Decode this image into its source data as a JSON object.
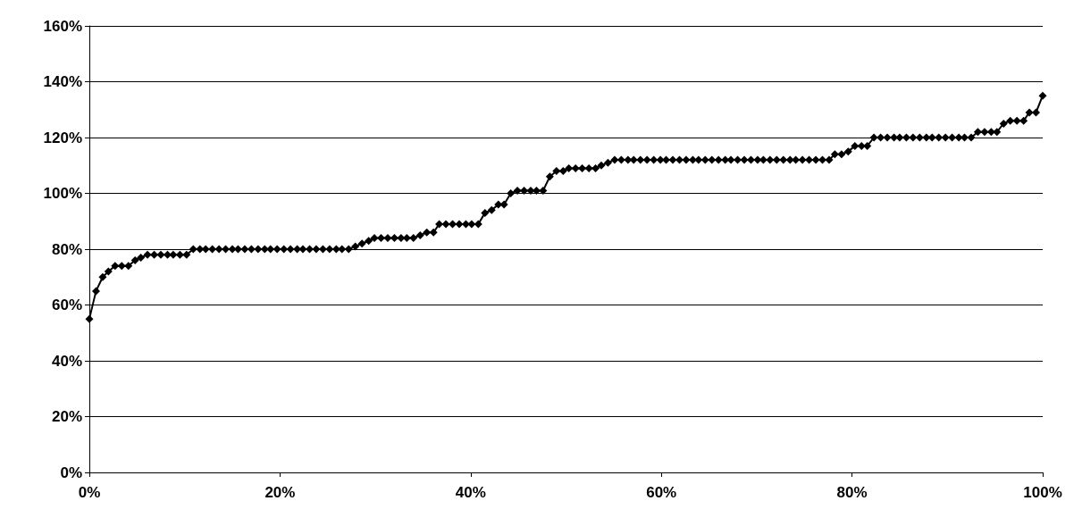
{
  "chart_data": {
    "type": "line",
    "marker": "diamond",
    "line_style": "solid",
    "grid": "y",
    "xlim": [
      0,
      100
    ],
    "xticks": [
      {
        "value": 0,
        "label": "0%"
      },
      {
        "value": 20,
        "label": "20%"
      },
      {
        "value": 40,
        "label": "40%"
      },
      {
        "value": 60,
        "label": "60%"
      },
      {
        "value": 80,
        "label": "80%"
      },
      {
        "value": 100,
        "label": "100%"
      }
    ],
    "ylim": [
      0,
      160
    ],
    "yticks": [
      {
        "value": 0,
        "label": "0%"
      },
      {
        "value": 20,
        "label": "20%"
      },
      {
        "value": 40,
        "label": "40%"
      },
      {
        "value": 60,
        "label": "60%"
      },
      {
        "value": 80,
        "label": "80%"
      },
      {
        "value": 100,
        "label": "100%"
      },
      {
        "value": 120,
        "label": "120%"
      },
      {
        "value": 140,
        "label": "140%"
      },
      {
        "value": 160,
        "label": "160%"
      }
    ],
    "x": [
      0,
      0.7,
      1.4,
      2.0,
      2.7,
      3.4,
      4.1,
      4.8,
      5.4,
      6.1,
      6.8,
      7.5,
      8.2,
      8.8,
      9.5,
      10.2,
      10.9,
      11.6,
      12.2,
      12.9,
      13.6,
      14.3,
      15.0,
      15.6,
      16.3,
      17.0,
      17.7,
      18.4,
      19.0,
      19.7,
      20.4,
      21.1,
      21.8,
      22.4,
      23.1,
      23.8,
      24.5,
      25.2,
      25.9,
      26.5,
      27.2,
      27.9,
      28.6,
      29.3,
      29.9,
      30.6,
      31.3,
      32.0,
      32.7,
      33.3,
      34.0,
      34.7,
      35.4,
      36.1,
      36.7,
      37.4,
      38.1,
      38.8,
      39.5,
      40.1,
      40.8,
      41.5,
      42.2,
      42.9,
      43.5,
      44.2,
      44.9,
      45.6,
      46.3,
      46.9,
      47.6,
      48.3,
      49.0,
      49.7,
      50.3,
      51.0,
      51.7,
      52.4,
      53.1,
      53.7,
      54.4,
      55.1,
      55.8,
      56.5,
      57.1,
      57.8,
      58.5,
      59.2,
      59.9,
      60.5,
      61.2,
      61.9,
      62.6,
      63.3,
      63.9,
      64.6,
      65.3,
      66.0,
      66.7,
      67.3,
      68.0,
      68.7,
      69.4,
      70.1,
      70.7,
      71.4,
      72.1,
      72.8,
      73.5,
      74.1,
      74.8,
      75.5,
      76.2,
      76.9,
      77.6,
      78.2,
      78.9,
      79.6,
      80.3,
      81.0,
      81.6,
      82.3,
      83.0,
      83.7,
      84.4,
      85.0,
      85.7,
      86.4,
      87.1,
      87.8,
      88.4,
      89.1,
      89.8,
      90.5,
      91.2,
      91.8,
      92.5,
      93.2,
      93.9,
      94.6,
      95.2,
      95.9,
      96.6,
      97.3,
      98.0,
      98.6,
      99.3,
      100
    ],
    "series": [
      {
        "color": "#000000",
        "values": [
          55,
          65,
          70,
          72,
          74,
          74,
          74,
          76,
          77,
          78,
          78,
          78,
          78,
          78,
          78,
          78,
          80,
          80,
          80,
          80,
          80,
          80,
          80,
          80,
          80,
          80,
          80,
          80,
          80,
          80,
          80,
          80,
          80,
          80,
          80,
          80,
          80,
          80,
          80,
          80,
          80,
          81,
          82,
          83,
          84,
          84,
          84,
          84,
          84,
          84,
          84,
          85,
          86,
          86,
          89,
          89,
          89,
          89,
          89,
          89,
          89,
          93,
          94,
          96,
          96,
          100,
          101,
          101,
          101,
          101,
          101,
          106,
          108,
          108,
          109,
          109,
          109,
          109,
          109,
          110,
          111,
          112,
          112,
          112,
          112,
          112,
          112,
          112,
          112,
          112,
          112,
          112,
          112,
          112,
          112,
          112,
          112,
          112,
          112,
          112,
          112,
          112,
          112,
          112,
          112,
          112,
          112,
          112,
          112,
          112,
          112,
          112,
          112,
          112,
          112,
          114,
          114,
          115,
          117,
          117,
          117,
          120,
          120,
          120,
          120,
          120,
          120,
          120,
          120,
          120,
          120,
          120,
          120,
          120,
          120,
          120,
          120,
          122,
          122,
          122,
          122,
          125,
          126,
          126,
          126,
          129,
          129,
          135
        ]
      }
    ]
  }
}
